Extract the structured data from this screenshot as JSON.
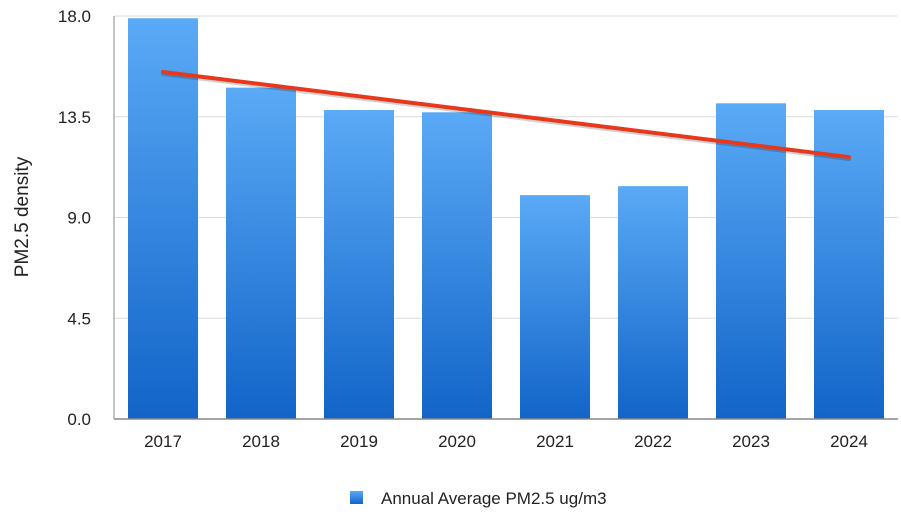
{
  "chart_data": {
    "type": "bar",
    "title": "",
    "xlabel": "",
    "ylabel": "PM2.5 density",
    "categories": [
      "2017",
      "2018",
      "2019",
      "2020",
      "2021",
      "2022",
      "2023",
      "2024"
    ],
    "series": [
      {
        "name": "Annual Average PM2.5 ug/m3",
        "values": [
          17.9,
          14.8,
          13.8,
          13.7,
          10.0,
          10.4,
          14.1,
          13.8
        ]
      }
    ],
    "trendline": {
      "type": "linear",
      "color": "#e8381c",
      "start_value": 15.5,
      "end_value": 11.7
    },
    "ylim": [
      0,
      18
    ],
    "yticks": [
      "0.0",
      "4.5",
      "9.0",
      "13.5",
      "18.0"
    ],
    "grid": true,
    "legend_position": "bottom-center",
    "colors": {
      "bar_top": "#5aaaf6",
      "bar_bottom": "#1264c8",
      "grid": "#dcdcdc",
      "axis": "#888888"
    }
  }
}
